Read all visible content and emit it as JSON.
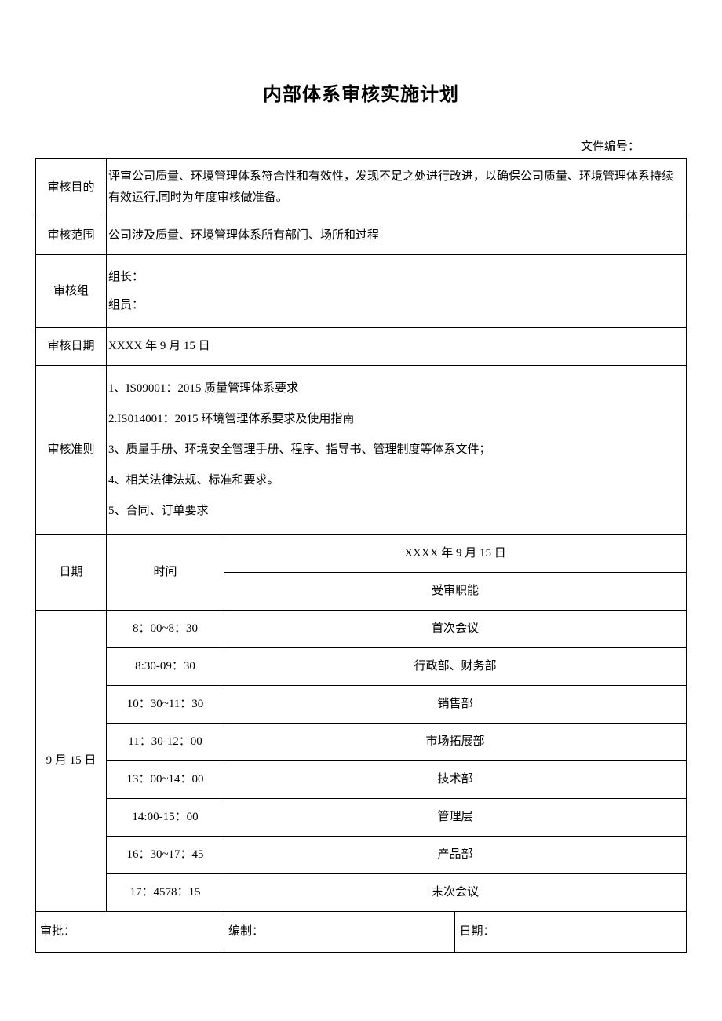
{
  "title": "内部体系审核实施计划",
  "docNumberLabel": "文件编号：",
  "rows": {
    "purpose": {
      "label": "审核目的",
      "content": "评审公司质量、环境管理体系符合性和有效性，发现不足之处进行改进，以确保公司质量、环境管理体系持续有效运行,同时为年度审核做准备。"
    },
    "scope": {
      "label": "审核范围",
      "content": "公司涉及质量、环境管理体系所有部门、场所和过程"
    },
    "team": {
      "label": "审核组",
      "leader": "组长：",
      "member": "组员："
    },
    "date": {
      "label": "审核日期",
      "content": "XXXX 年 9 月 15 日"
    },
    "criteria": {
      "label": "审核准则",
      "items": [
        "1、IS09001：2015 质量管理体系要求",
        "2.IS014001：2015 环境管理体系要求及使用指南",
        "3、质量手册、环境安全管理手册、程序、指导书、管理制度等体系文件；",
        "4、相关法律法规、标准和要求。",
        "5、合同、订单要求"
      ]
    }
  },
  "scheduleHeader": {
    "dateLabel": "日期",
    "timeLabel": "时间",
    "dateValue": "XXXX 年 9 月 15 日",
    "functionLabel": "受审职能"
  },
  "scheduleDate": "9 月 15 日",
  "schedule": [
    {
      "time": "8：00~8：30",
      "activity": "首次会议"
    },
    {
      "time": "8:30-09：30",
      "activity": "行政部、财务部"
    },
    {
      "time": "10：30~11：30",
      "activity": "销售部"
    },
    {
      "time": "11：30-12：00",
      "activity": "市场拓展部"
    },
    {
      "time": "13：00~14：00",
      "activity": "技术部"
    },
    {
      "time": "14:00-15：00",
      "activity": "管理层"
    },
    {
      "time": "16：30~17：45",
      "activity": "产品部"
    },
    {
      "time": "17：4578：15",
      "activity": "末次会议"
    }
  ],
  "footer": {
    "approval": "审批：",
    "preparer": "编制：",
    "date": "日期："
  },
  "styling": {
    "pageWidth": 920,
    "pageHeight": 1301,
    "backgroundColor": "#ffffff",
    "textColor": "#000000",
    "borderColor": "#000000",
    "fontFamily": "SimSun",
    "titleFontSize": 24,
    "bodyFontSize": 15,
    "labelColumnWidth": 90,
    "timeColumnWidth": 150
  }
}
